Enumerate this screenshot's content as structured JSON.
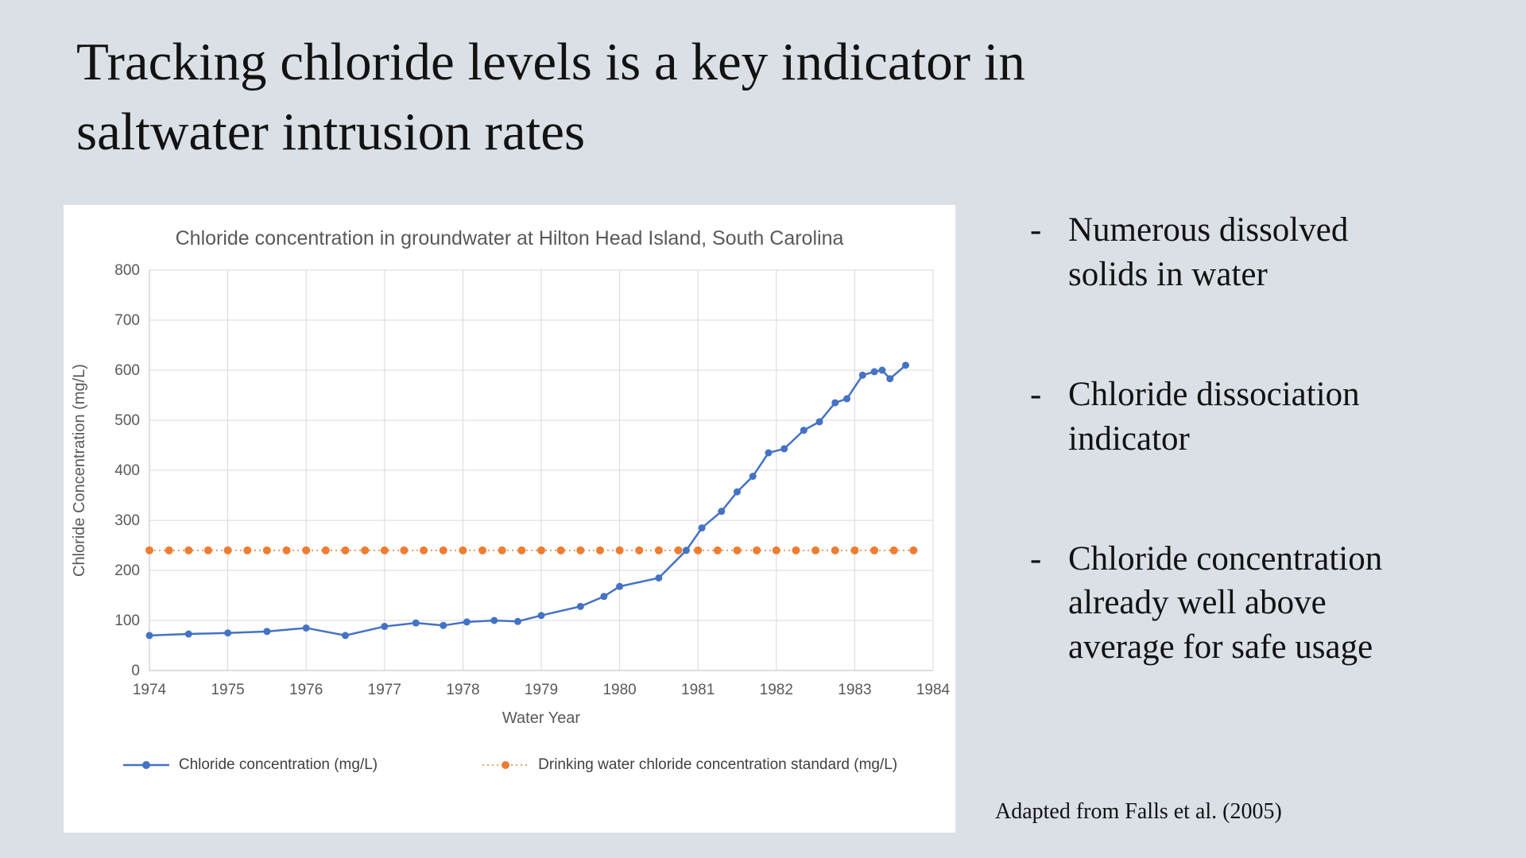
{
  "slide": {
    "title_lines": [
      "Tracking chloride levels is a key indicator in",
      "saltwater intrusion rates"
    ],
    "bullet_marker": "-",
    "bullets": [
      "Numerous dissolved solids in water",
      "Chloride dissociation indicator",
      "Chloride concentration  already well above average for safe usage"
    ],
    "source": "Adapted from Falls et al. (2005)"
  },
  "chart_data": {
    "type": "line",
    "title": "Chloride concentration in groundwater at Hilton Head Island, South Carolina",
    "xlabel": "Water Year",
    "ylabel": "Chloride Concentration (mg/L)",
    "xlim": [
      1974,
      1984
    ],
    "ylim": [
      0,
      800
    ],
    "xticks": [
      1974,
      1975,
      1976,
      1977,
      1978,
      1979,
      1980,
      1981,
      1982,
      1983,
      1984
    ],
    "yticks": [
      0,
      100,
      200,
      300,
      400,
      500,
      600,
      700,
      800
    ],
    "grid": true,
    "legend_position": "bottom",
    "colors": {
      "chloride": "#4472c4",
      "standard": "#ed7d31",
      "grid": "#d9d9d9",
      "axis": "#bfbfbf",
      "axis_text": "#595959"
    },
    "series": [
      {
        "name": "Chloride concentration (mg/L)",
        "color": "#4472c4",
        "marker": "circle",
        "line_style": "solid",
        "x": [
          1974.0,
          1974.5,
          1975.0,
          1975.5,
          1976.0,
          1976.5,
          1977.0,
          1977.4,
          1977.75,
          1978.05,
          1978.4,
          1978.7,
          1979.0,
          1979.5,
          1979.8,
          1980.0,
          1980.5,
          1980.85,
          1981.05,
          1981.3,
          1981.5,
          1981.7,
          1981.9,
          1982.1,
          1982.35,
          1982.55,
          1982.75,
          1982.9,
          1983.1,
          1983.25,
          1983.35,
          1983.45,
          1983.65
        ],
        "y": [
          70,
          73,
          75,
          78,
          85,
          70,
          88,
          95,
          90,
          97,
          100,
          98,
          110,
          128,
          148,
          168,
          185,
          240,
          285,
          318,
          357,
          388,
          435,
          443,
          480,
          497,
          535,
          543,
          590,
          597,
          600,
          583,
          610
        ]
      },
      {
        "name": "Drinking water chloride concentration standard (mg/L)",
        "color": "#ed7d31",
        "marker": "circle",
        "line_style": "dotted",
        "constant_y": 240,
        "x_start": 1974.0,
        "x_end": 1983.75,
        "marker_step": 0.25
      }
    ]
  }
}
